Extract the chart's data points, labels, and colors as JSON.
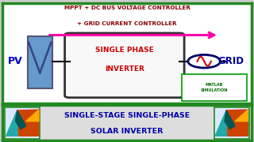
{
  "bg_color": "#cccccc",
  "top_panel_bg": "#ffffff",
  "bottom_panel_bg": "#dddddd",
  "border_color_top": "#228822",
  "border_color_bottom": "#228822",
  "title_text1": "MPPT + DC BUS VOLTAGE CONTROLLER",
  "title_text2": "+ GRID CURRENT CONTROLLER",
  "title_color": "#880000",
  "pv_label": "PV",
  "pv_label_color": "#0000cc",
  "pv_box_fill": "#6699cc",
  "pv_box_edge": "#555577",
  "inverter_label1": "SINGLE PHASE",
  "inverter_label2": "INVERTER",
  "inverter_text_color": "#cc0000",
  "grid_label": "GRID",
  "grid_color": "#000099",
  "matlab_text": "MATLAB\nSIMULATION",
  "matlab_color": "#006600",
  "matlab_border": "#009900",
  "arrow_color": "#ff00aa",
  "bottom_text1": "SINGLE-STAGE SINGLE-PHASE",
  "bottom_text2": "SOLAR INVERTER",
  "bottom_text_color": "#0000aa",
  "line_color": "#000000",
  "circle_edge": "#000066",
  "sine_color": "#cc0000"
}
